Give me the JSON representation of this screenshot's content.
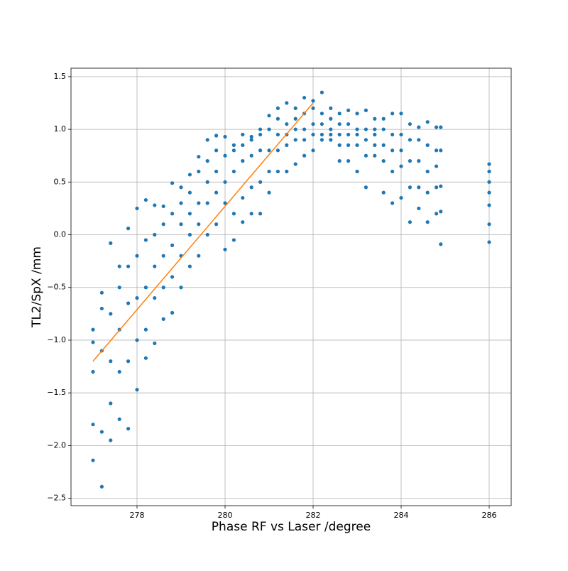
{
  "chart_data": {
    "type": "scatter",
    "xlabel": "Phase RF vs Laser /degree",
    "ylabel": "TL2/SpX /mm",
    "xlim": [
      276.5,
      286.5
    ],
    "ylim": [
      -2.57,
      1.58
    ],
    "xticks": [
      278,
      280,
      282,
      284,
      286
    ],
    "yticks": [
      {
        "value": -2.5,
        "label": "−2.5"
      },
      {
        "value": -2.0,
        "label": "−2.0"
      },
      {
        "value": -1.5,
        "label": "−1.5"
      },
      {
        "value": -1.0,
        "label": "−1.0"
      },
      {
        "value": -0.5,
        "label": "−0.5"
      },
      {
        "value": 0.0,
        "label": "0.0"
      },
      0.5,
      {
        "value": 1.0,
        "label": "1.0"
      },
      1.5
    ],
    "grid": true,
    "series": [
      {
        "color": "#1f77b4",
        "x": [
          277,
          277,
          277,
          277,
          277,
          277.2,
          277.2,
          277.2,
          277.2,
          277.2,
          277.4,
          277.4,
          277.4,
          277.4,
          277.4,
          277.6,
          277.6,
          277.6,
          277.6,
          277.6,
          277.8,
          277.8,
          277.8,
          277.8,
          277.8,
          278,
          278,
          278,
          278,
          278,
          278.2,
          278.2,
          278.2,
          278.2,
          278.2,
          278.4,
          278.4,
          278.4,
          278.4,
          278.4,
          278.6,
          278.6,
          278.6,
          278.6,
          278.6,
          278.8,
          278.8,
          278.8,
          278.8,
          278.8,
          279,
          279,
          279,
          279,
          279,
          279.2,
          279.2,
          279.2,
          279.2,
          279.2,
          279.4,
          279.4,
          279.4,
          279.4,
          279.4,
          279.6,
          279.6,
          279.6,
          279.6,
          279.6,
          279.8,
          279.8,
          279.8,
          279.8,
          279.8,
          280,
          280,
          280,
          280,
          280,
          280.2,
          280.2,
          280.2,
          280.2,
          280.2,
          280.4,
          280.4,
          280.4,
          280.4,
          280.4,
          280.6,
          280.6,
          280.6,
          280.6,
          280.6,
          280.8,
          280.8,
          280.8,
          280.8,
          280.8,
          281,
          281,
          281,
          281,
          281,
          281.2,
          281.2,
          281.2,
          281.2,
          281.2,
          281.4,
          281.4,
          281.4,
          281.4,
          281.4,
          281.6,
          281.6,
          281.6,
          281.6,
          281.6,
          281.8,
          281.8,
          281.8,
          281.8,
          281.8,
          282,
          282,
          282,
          282,
          282,
          282.2,
          282.2,
          282.2,
          282.2,
          282.2,
          282.4,
          282.4,
          282.4,
          282.4,
          282.4,
          282.6,
          282.6,
          282.6,
          282.6,
          282.6,
          282.8,
          282.8,
          282.8,
          282.8,
          282.8,
          283,
          283,
          283,
          283,
          283,
          283.2,
          283.2,
          283.2,
          283.2,
          283.2,
          283.4,
          283.4,
          283.4,
          283.4,
          283.4,
          283.6,
          283.6,
          283.6,
          283.6,
          283.6,
          283.8,
          283.8,
          283.8,
          283.8,
          283.8,
          284,
          284,
          284,
          284,
          284,
          284.2,
          284.2,
          284.2,
          284.2,
          284.2,
          284.4,
          284.4,
          284.4,
          284.4,
          284.4,
          284.6,
          284.6,
          284.6,
          284.6,
          284.6,
          284.8,
          284.8,
          284.8,
          284.8,
          284.8,
          284.9,
          284.9,
          284.9,
          284.9,
          284.9,
          286,
          286,
          286,
          286,
          286,
          286,
          286
        ],
        "values": [
          -2.14,
          -1.8,
          -1.3,
          -1.02,
          -0.9,
          -2.39,
          -1.87,
          -1.1,
          -0.7,
          -0.55,
          -1.95,
          -1.6,
          -1.2,
          -0.75,
          -0.08,
          -1.75,
          -1.3,
          -0.9,
          -0.5,
          -0.3,
          -1.84,
          -1.2,
          -0.65,
          -0.3,
          0.06,
          -1.47,
          -1.0,
          -0.6,
          -0.2,
          0.25,
          -1.17,
          -0.9,
          -0.5,
          -0.05,
          0.33,
          -1.03,
          -0.6,
          -0.3,
          0.0,
          0.28,
          -0.8,
          -0.5,
          -0.2,
          0.1,
          0.27,
          -0.74,
          -0.4,
          -0.1,
          0.2,
          0.49,
          -0.5,
          -0.2,
          0.1,
          0.3,
          0.45,
          -0.3,
          0.0,
          0.2,
          0.4,
          0.57,
          -0.2,
          0.1,
          0.3,
          0.6,
          0.74,
          0.0,
          0.3,
          0.5,
          0.7,
          0.9,
          0.1,
          0.4,
          0.6,
          0.8,
          0.94,
          -0.14,
          0.3,
          0.5,
          0.75,
          0.93,
          -0.05,
          0.2,
          0.6,
          0.8,
          0.85,
          0.12,
          0.35,
          0.7,
          0.85,
          0.95,
          0.2,
          0.45,
          0.75,
          0.9,
          0.93,
          0.2,
          0.5,
          0.8,
          0.95,
          1.0,
          0.4,
          0.6,
          0.8,
          1.0,
          1.13,
          0.6,
          0.8,
          0.95,
          1.1,
          1.2,
          0.6,
          0.85,
          0.95,
          1.05,
          1.25,
          0.67,
          0.9,
          1.0,
          1.1,
          1.2,
          0.75,
          0.9,
          1.0,
          1.15,
          1.3,
          0.8,
          0.95,
          1.05,
          1.2,
          1.27,
          0.9,
          0.95,
          1.05,
          1.15,
          1.35,
          0.9,
          0.95,
          1.0,
          1.1,
          1.2,
          0.7,
          0.85,
          0.95,
          1.05,
          1.15,
          0.7,
          0.85,
          0.95,
          1.05,
          1.18,
          0.6,
          0.85,
          0.95,
          1.0,
          1.15,
          0.45,
          0.75,
          0.9,
          1.0,
          1.18,
          0.75,
          0.85,
          0.95,
          1.0,
          1.1,
          0.4,
          0.7,
          0.85,
          1.0,
          1.1,
          0.3,
          0.6,
          0.8,
          0.95,
          1.15,
          0.35,
          0.65,
          0.8,
          0.95,
          1.15,
          0.12,
          0.45,
          0.7,
          0.9,
          1.05,
          0.25,
          0.45,
          0.7,
          0.9,
          1.02,
          0.12,
          0.4,
          0.6,
          0.85,
          1.07,
          0.2,
          0.45,
          0.65,
          0.8,
          1.02,
          -0.09,
          0.22,
          0.46,
          0.8,
          1.02,
          -0.07,
          0.1,
          0.28,
          0.4,
          0.5,
          0.6,
          0.67
        ]
      },
      {
        "color": "#ff7f0e",
        "style": "line",
        "x": [
          277,
          282
        ],
        "values": [
          -1.2,
          1.25
        ]
      }
    ]
  }
}
